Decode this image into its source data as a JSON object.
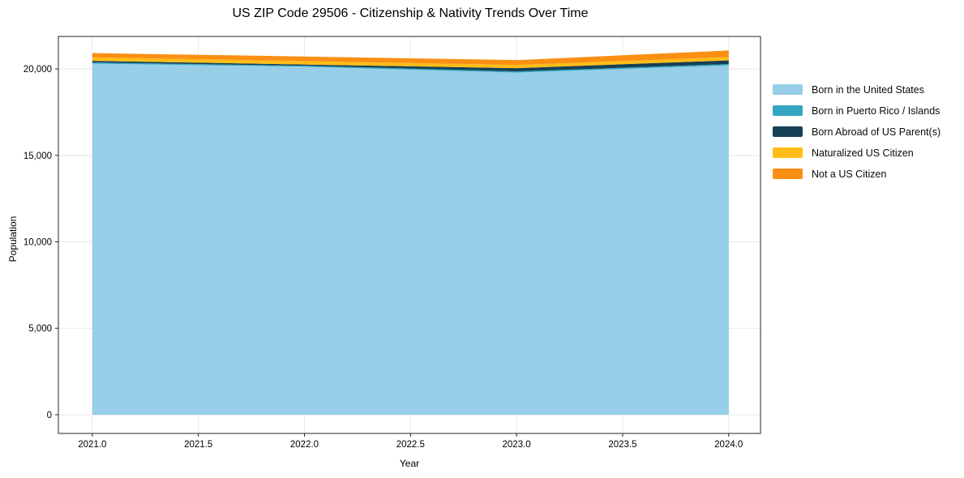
{
  "chart_data": {
    "type": "area",
    "stacked": true,
    "title": "US ZIP Code 29506 - Citizenship & Nativity Trends Over Time",
    "xlabel": "Year",
    "ylabel": "Population",
    "x": [
      2021,
      2022,
      2023,
      2024
    ],
    "series": [
      {
        "name": "Born in the United States",
        "color": "#8ECAE6",
        "values": [
          20310,
          20130,
          19790,
          20210
        ]
      },
      {
        "name": "Born in Puerto Rico / Islands",
        "color": "#219EBC",
        "values": [
          70,
          60,
          70,
          70
        ]
      },
      {
        "name": "Born Abroad of US Parent(s)",
        "color": "#023047",
        "values": [
          90,
          70,
          190,
          220
        ]
      },
      {
        "name": "Naturalized US Citizen",
        "color": "#FFB703",
        "values": [
          200,
          190,
          180,
          190
        ]
      },
      {
        "name": "Not a US Citizen",
        "color": "#FB8500",
        "values": [
          250,
          270,
          280,
          380
        ]
      }
    ],
    "totals": [
      20920,
      20720,
      20510,
      21070
    ],
    "xlim": [
      2020.84,
      2024.15
    ],
    "ylim": [
      -1080,
      21880
    ],
    "xticks": {
      "values": [
        2021.0,
        2021.5,
        2022.0,
        2022.5,
        2023.0,
        2023.5,
        2024.0
      ],
      "labels": [
        "2021.0",
        "2021.5",
        "2022.0",
        "2022.5",
        "2023.0",
        "2023.5",
        "2024.0"
      ]
    },
    "yticks": {
      "values": [
        0,
        5000,
        10000,
        15000,
        20000
      ],
      "labels": [
        "0",
        "5,000",
        "10,000",
        "15,000",
        "20,000"
      ]
    },
    "grid": true,
    "grid_color": "#e8e8e8",
    "frame_color": "#262626",
    "fill_opacity": 0.92,
    "legend_position": "right"
  }
}
